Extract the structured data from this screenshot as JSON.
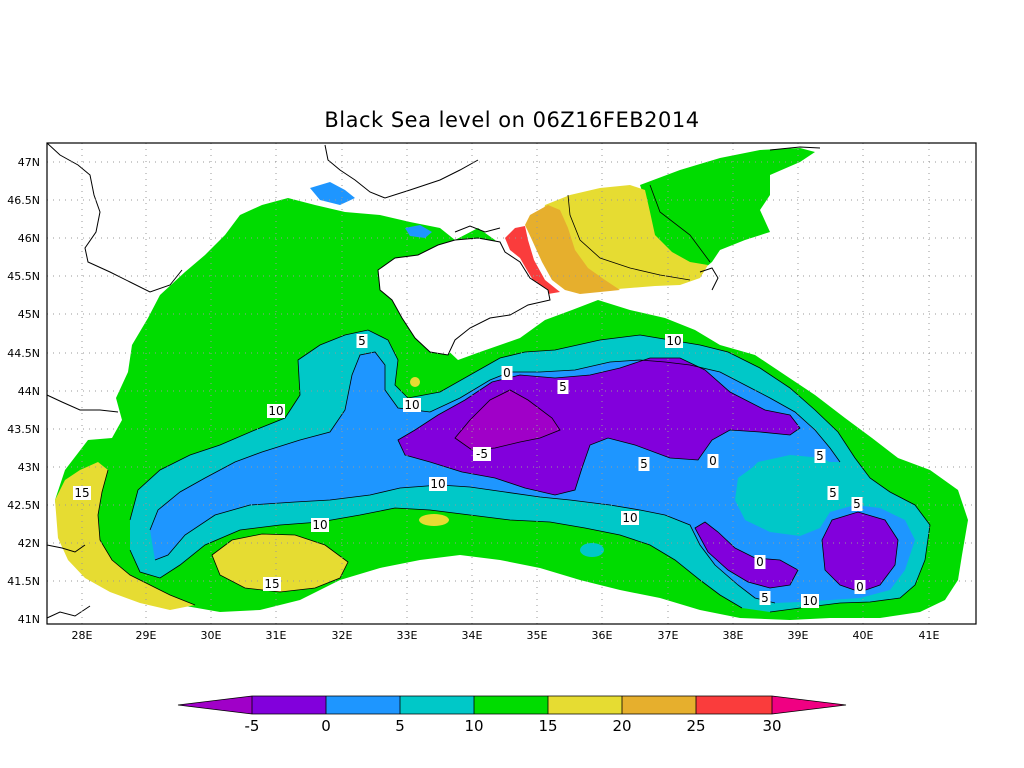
{
  "title": "Black Sea level on 06Z16FEB2014",
  "map": {
    "lat_labels": [
      "47N",
      "46.5N",
      "46N",
      "45.5N",
      "45N",
      "44.5N",
      "44N",
      "43.5N",
      "43N",
      "42.5N",
      "42N",
      "41.5N",
      "41N"
    ],
    "lon_labels": [
      "28E",
      "29E",
      "30E",
      "31E",
      "32E",
      "33E",
      "34E",
      "35E",
      "36E",
      "37E",
      "38E",
      "39E",
      "40E",
      "41E"
    ],
    "contour_labels": [
      "5",
      "10",
      "10",
      "0",
      "5",
      "-5",
      "0",
      "5",
      "5",
      "5",
      "10",
      "10",
      "5",
      "10",
      "15",
      "15",
      "0",
      "5",
      "10",
      "0",
      "10"
    ]
  },
  "colorbar": {
    "labels": [
      "-5",
      "0",
      "5",
      "10",
      "15",
      "20",
      "25",
      "30"
    ],
    "colors": {
      "below": "#a000c8",
      "c1": "#8200dc",
      "c2": "#1e96ff",
      "c3": "#00c8c8",
      "c4": "#00dc00",
      "c5": "#e6dc32",
      "c6": "#e6af2d",
      "c7": "#fa3c3c",
      "above": "#f00082"
    }
  },
  "legend_colors": {
    "land": "#ffffff",
    "frame": "#000000"
  }
}
